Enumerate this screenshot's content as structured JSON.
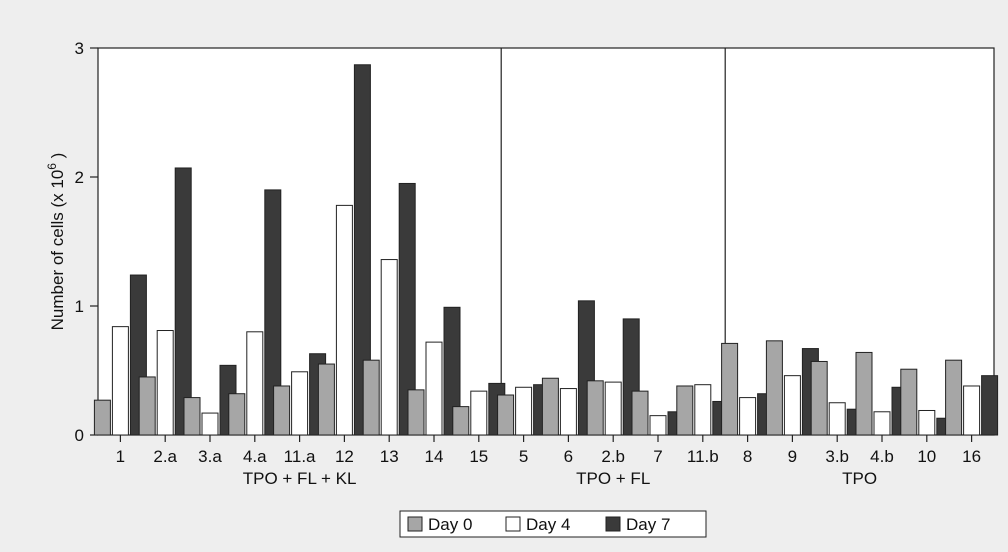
{
  "chart_data": {
    "type": "bar",
    "ylabel": "Number of cells (x 10",
    "ylabel_sup": "6",
    "ylabel_end": " )",
    "ylim": [
      0,
      3
    ],
    "yticks": [
      "0",
      "1",
      "2",
      "3"
    ],
    "grid": false,
    "legend_position": "bottom-center",
    "categories": [
      "1",
      "2.a",
      "3.a",
      "4.a",
      "11.a",
      "12",
      "13",
      "14",
      "15",
      "5",
      "6",
      "2.b",
      "7",
      "11.b",
      "8",
      "9",
      "3.b",
      "4.b",
      "10",
      "16"
    ],
    "groups": [
      {
        "label": "TPO + FL + KL",
        "count": 9
      },
      {
        "label": "TPO + FL",
        "count": 5
      },
      {
        "label": "TPO",
        "count": 6
      }
    ],
    "series": [
      {
        "name": "Day 0",
        "color": "#a6a6a6",
        "values": [
          0.27,
          0.45,
          0.29,
          0.32,
          0.38,
          0.55,
          0.58,
          0.35,
          0.22,
          0.31,
          0.44,
          0.42,
          0.34,
          0.38,
          0.71,
          0.73,
          0.57,
          0.64,
          0.51,
          0.58
        ]
      },
      {
        "name": "Day 4",
        "color": "#ffffff",
        "values": [
          0.84,
          0.81,
          0.17,
          0.8,
          0.49,
          1.78,
          1.36,
          0.72,
          0.34,
          0.37,
          0.36,
          0.41,
          0.15,
          0.39,
          0.29,
          0.46,
          0.25,
          0.18,
          0.19,
          0.38
        ]
      },
      {
        "name": "Day 7",
        "color": "#3a3a3a",
        "values": [
          1.24,
          2.07,
          0.54,
          1.9,
          0.63,
          2.87,
          1.95,
          0.99,
          0.4,
          0.39,
          1.04,
          0.9,
          0.18,
          0.26,
          0.32,
          0.67,
          0.2,
          0.37,
          0.13,
          0.46
        ]
      }
    ]
  }
}
